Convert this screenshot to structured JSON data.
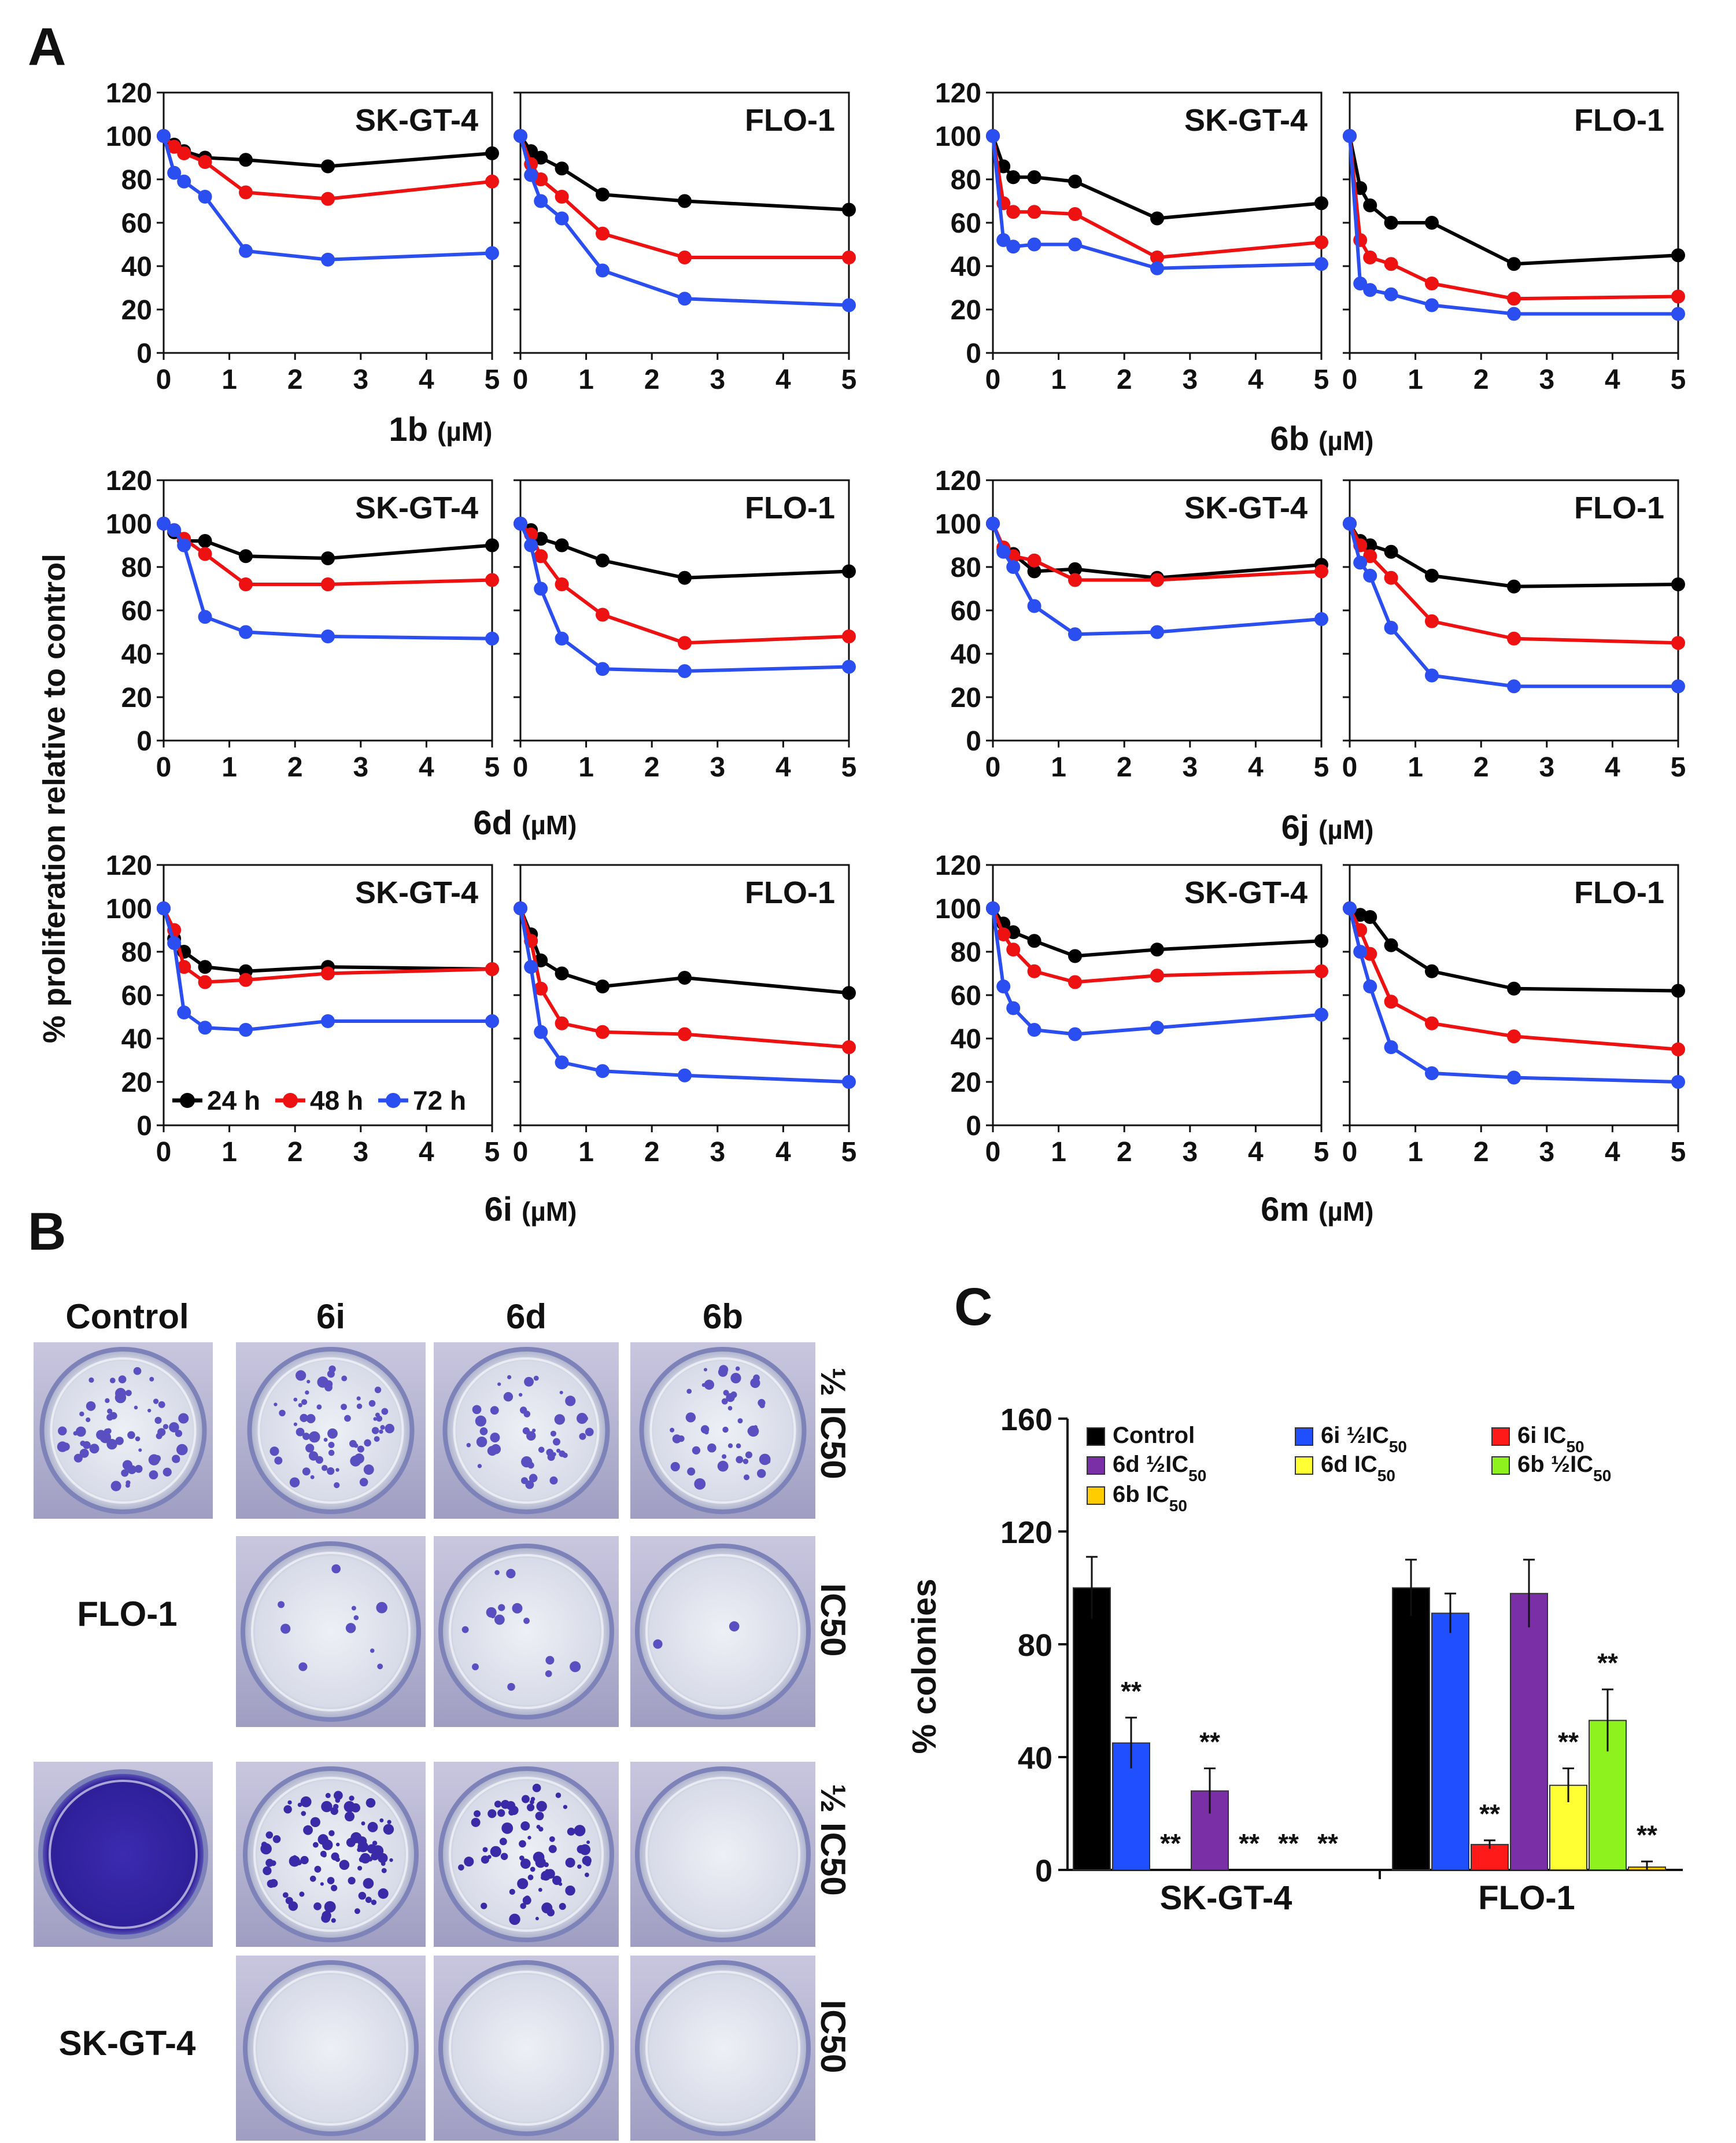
{
  "panels": {
    "a": "A",
    "b": "B",
    "c": "C"
  },
  "colors": {
    "24h": "#000000",
    "48h": "#ee1111",
    "72h": "#2a4ef0",
    "control": "#000000",
    "6i_half": "#1f4fff",
    "6i_ic50": "#ff1a1a",
    "6d_half": "#7a2fa6",
    "6d_ic50": "#ffff33",
    "6b_half": "#8df21e",
    "6b_ic50": "#ffcc00"
  },
  "panel_a": {
    "y_axis_label": "% proliferation relative to control",
    "unit": "(µM)",
    "legend": [
      "24 h",
      "48 h",
      "72 h"
    ],
    "cell_lines": [
      "SK-GT-4",
      "FLO-1"
    ]
  },
  "chart_data": [
    {
      "type": "line",
      "compound": "1b",
      "cell_line": "SK-GT-4",
      "xlabel": "(µM)",
      "ylabel": "% proliferation relative to control",
      "x": [
        0,
        0.16,
        0.31,
        0.63,
        1.25,
        2.5,
        5
      ],
      "xlim": [
        0,
        5
      ],
      "ylim": [
        0,
        120
      ],
      "series": [
        {
          "name": "24 h",
          "values": [
            100,
            96,
            93,
            90,
            89,
            86,
            92
          ]
        },
        {
          "name": "48 h",
          "values": [
            100,
            95,
            92,
            88,
            74,
            71,
            79
          ]
        },
        {
          "name": "72 h",
          "values": [
            100,
            83,
            79,
            72,
            47,
            43,
            46
          ]
        }
      ]
    },
    {
      "type": "line",
      "compound": "1b",
      "cell_line": "FLO-1",
      "xlabel": "(µM)",
      "ylabel": "% proliferation relative to control",
      "x": [
        0,
        0.16,
        0.31,
        0.63,
        1.25,
        2.5,
        5
      ],
      "xlim": [
        0,
        5
      ],
      "ylim": [
        0,
        120
      ],
      "series": [
        {
          "name": "24 h",
          "values": [
            100,
            93,
            90,
            85,
            73,
            70,
            66
          ]
        },
        {
          "name": "48 h",
          "values": [
            100,
            87,
            80,
            72,
            55,
            44,
            44
          ]
        },
        {
          "name": "72 h",
          "values": [
            100,
            82,
            70,
            62,
            38,
            25,
            22
          ]
        }
      ]
    },
    {
      "type": "line",
      "compound": "6b",
      "cell_line": "SK-GT-4",
      "xlabel": "(µM)",
      "ylabel": "% proliferation relative to control",
      "x": [
        0,
        0.16,
        0.31,
        0.63,
        1.25,
        2.5,
        5
      ],
      "xlim": [
        0,
        5
      ],
      "ylim": [
        0,
        120
      ],
      "series": [
        {
          "name": "24 h",
          "values": [
            100,
            86,
            81,
            81,
            79,
            62,
            69
          ]
        },
        {
          "name": "48 h",
          "values": [
            100,
            69,
            65,
            65,
            64,
            44,
            51
          ]
        },
        {
          "name": "72 h",
          "values": [
            100,
            52,
            49,
            50,
            50,
            39,
            41
          ]
        }
      ]
    },
    {
      "type": "line",
      "compound": "6b",
      "cell_line": "FLO-1",
      "xlabel": "(µM)",
      "ylabel": "% proliferation relative to control",
      "x": [
        0,
        0.16,
        0.31,
        0.63,
        1.25,
        2.5,
        5
      ],
      "xlim": [
        0,
        5
      ],
      "ylim": [
        0,
        120
      ],
      "series": [
        {
          "name": "24 h",
          "values": [
            100,
            76,
            68,
            60,
            60,
            41,
            45
          ]
        },
        {
          "name": "48 h",
          "values": [
            100,
            52,
            44,
            41,
            32,
            25,
            26
          ]
        },
        {
          "name": "72 h",
          "values": [
            100,
            32,
            29,
            27,
            22,
            18,
            18
          ]
        }
      ]
    },
    {
      "type": "line",
      "compound": "6d",
      "cell_line": "SK-GT-4",
      "xlabel": "(µM)",
      "ylabel": "% proliferation relative to control",
      "x": [
        0,
        0.16,
        0.31,
        0.63,
        1.25,
        2.5,
        5
      ],
      "xlim": [
        0,
        5
      ],
      "ylim": [
        0,
        120
      ],
      "series": [
        {
          "name": "24 h",
          "values": [
            100,
            96,
            92,
            92,
            85,
            84,
            90
          ]
        },
        {
          "name": "48 h",
          "values": [
            100,
            97,
            93,
            86,
            72,
            72,
            74
          ]
        },
        {
          "name": "72 h",
          "values": [
            100,
            97,
            90,
            57,
            50,
            48,
            47
          ]
        }
      ]
    },
    {
      "type": "line",
      "compound": "6d",
      "cell_line": "FLO-1",
      "xlabel": "(µM)",
      "ylabel": "% proliferation relative to control",
      "x": [
        0,
        0.16,
        0.31,
        0.63,
        1.25,
        2.5,
        5
      ],
      "xlim": [
        0,
        5
      ],
      "ylim": [
        0,
        120
      ],
      "series": [
        {
          "name": "24 h",
          "values": [
            100,
            97,
            93,
            90,
            83,
            75,
            78
          ]
        },
        {
          "name": "48 h",
          "values": [
            100,
            95,
            85,
            72,
            58,
            45,
            48
          ]
        },
        {
          "name": "72 h",
          "values": [
            100,
            90,
            70,
            47,
            33,
            32,
            34
          ]
        }
      ]
    },
    {
      "type": "line",
      "compound": "6j",
      "cell_line": "SK-GT-4",
      "xlabel": "(µM)",
      "ylabel": "% proliferation relative to control",
      "x": [
        0,
        0.16,
        0.31,
        0.63,
        1.25,
        2.5,
        5
      ],
      "xlim": [
        0,
        5
      ],
      "ylim": [
        0,
        120
      ],
      "series": [
        {
          "name": "24 h",
          "values": [
            100,
            88,
            86,
            78,
            79,
            75,
            81
          ]
        },
        {
          "name": "48 h",
          "values": [
            100,
            89,
            85,
            83,
            74,
            74,
            78
          ]
        },
        {
          "name": "72 h",
          "values": [
            100,
            87,
            80,
            62,
            49,
            50,
            56
          ]
        }
      ]
    },
    {
      "type": "line",
      "compound": "6j",
      "cell_line": "FLO-1",
      "xlabel": "(µM)",
      "ylabel": "% proliferation relative to control",
      "x": [
        0,
        0.16,
        0.31,
        0.63,
        1.25,
        2.5,
        5
      ],
      "xlim": [
        0,
        5
      ],
      "ylim": [
        0,
        120
      ],
      "series": [
        {
          "name": "24 h",
          "values": [
            100,
            92,
            90,
            87,
            76,
            71,
            72
          ]
        },
        {
          "name": "48 h",
          "values": [
            100,
            90,
            85,
            75,
            55,
            47,
            45
          ]
        },
        {
          "name": "72 h",
          "values": [
            100,
            82,
            76,
            52,
            30,
            25,
            25
          ]
        }
      ]
    },
    {
      "type": "line",
      "compound": "6i",
      "cell_line": "SK-GT-4",
      "xlabel": "(µM)",
      "ylabel": "% proliferation relative to control",
      "x": [
        0,
        0.16,
        0.31,
        0.63,
        1.25,
        2.5,
        5
      ],
      "xlim": [
        0,
        5
      ],
      "ylim": [
        0,
        120
      ],
      "series": [
        {
          "name": "24 h",
          "values": [
            100,
            86,
            80,
            73,
            71,
            73,
            72
          ]
        },
        {
          "name": "48 h",
          "values": [
            100,
            90,
            73,
            66,
            67,
            70,
            72
          ]
        },
        {
          "name": "72 h",
          "values": [
            100,
            84,
            52,
            45,
            44,
            48,
            48
          ]
        }
      ]
    },
    {
      "type": "line",
      "compound": "6i",
      "cell_line": "FLO-1",
      "xlabel": "(µM)",
      "ylabel": "% proliferation relative to control",
      "x": [
        0,
        0.16,
        0.31,
        0.63,
        1.25,
        2.5,
        5
      ],
      "xlim": [
        0,
        5
      ],
      "ylim": [
        0,
        120
      ],
      "series": [
        {
          "name": "24 h",
          "values": [
            100,
            88,
            76,
            70,
            64,
            68,
            61
          ]
        },
        {
          "name": "48 h",
          "values": [
            100,
            85,
            63,
            47,
            43,
            42,
            36
          ]
        },
        {
          "name": "72 h",
          "values": [
            100,
            73,
            43,
            29,
            25,
            23,
            20
          ]
        }
      ]
    },
    {
      "type": "line",
      "compound": "6m",
      "cell_line": "SK-GT-4",
      "xlabel": "(µM)",
      "ylabel": "% proliferation relative to control",
      "x": [
        0,
        0.16,
        0.31,
        0.63,
        1.25,
        2.5,
        5
      ],
      "xlim": [
        0,
        5
      ],
      "ylim": [
        0,
        120
      ],
      "series": [
        {
          "name": "24 h",
          "values": [
            100,
            93,
            89,
            85,
            78,
            81,
            85
          ]
        },
        {
          "name": "48 h",
          "values": [
            100,
            88,
            81,
            71,
            66,
            69,
            71
          ]
        },
        {
          "name": "72 h",
          "values": [
            100,
            64,
            54,
            44,
            42,
            45,
            51
          ]
        }
      ]
    },
    {
      "type": "line",
      "compound": "6m",
      "cell_line": "FLO-1",
      "xlabel": "(µM)",
      "ylabel": "% proliferation relative to control",
      "x": [
        0,
        0.16,
        0.31,
        0.63,
        1.25,
        2.5,
        5
      ],
      "xlim": [
        0,
        5
      ],
      "ylim": [
        0,
        120
      ],
      "series": [
        {
          "name": "24 h",
          "values": [
            100,
            97,
            96,
            83,
            71,
            63,
            62
          ]
        },
        {
          "name": "48 h",
          "values": [
            100,
            90,
            79,
            57,
            47,
            41,
            35
          ]
        },
        {
          "name": "72 h",
          "values": [
            100,
            80,
            64,
            36,
            24,
            22,
            20
          ]
        }
      ]
    },
    {
      "type": "bar",
      "title": "",
      "ylabel": "% colonies",
      "ylim": [
        0,
        160
      ],
      "yticks": [
        0,
        40,
        80,
        120,
        160
      ],
      "categories": [
        "SK-GT-4",
        "FLO-1"
      ],
      "series": [
        {
          "name": "Control",
          "values": [
            100,
            100
          ],
          "errors": [
            11,
            10
          ],
          "sig": [
            "",
            ""
          ]
        },
        {
          "name": "6i ½IC50",
          "values": [
            45,
            91
          ],
          "errors": [
            9,
            7
          ],
          "sig": [
            "**",
            ""
          ]
        },
        {
          "name": "6i IC50",
          "values": [
            0,
            9
          ],
          "errors": [
            0,
            1.5
          ],
          "sig": [
            "**",
            "**"
          ]
        },
        {
          "name": "6d ½IC50",
          "values": [
            28,
            98
          ],
          "errors": [
            8,
            12
          ],
          "sig": [
            "**",
            ""
          ]
        },
        {
          "name": "6d IC50",
          "values": [
            0,
            30
          ],
          "errors": [
            0,
            6
          ],
          "sig": [
            "**",
            "**"
          ]
        },
        {
          "name": "6b ½IC50",
          "values": [
            0,
            53
          ],
          "errors": [
            0,
            11
          ],
          "sig": [
            "**",
            "**"
          ]
        },
        {
          "name": "6b IC50",
          "values": [
            0,
            1
          ],
          "errors": [
            0,
            2
          ],
          "sig": [
            "**",
            "**"
          ]
        }
      ]
    }
  ],
  "panel_b": {
    "columns": [
      "Control",
      "6i",
      "6d",
      "6b"
    ],
    "rows": [
      "FLO-1",
      "SK-GT-4"
    ],
    "dose_half": "½ IC50",
    "dose_full": "IC50"
  },
  "panel_c": {
    "ylabel": "% colonies",
    "legend": [
      {
        "pre": "Control",
        "sub": ""
      },
      {
        "pre": "6i ½IC",
        "sub": "50"
      },
      {
        "pre": "6i IC",
        "sub": "50"
      },
      {
        "pre": "6d ½IC",
        "sub": "50"
      },
      {
        "pre": "6d IC",
        "sub": "50"
      },
      {
        "pre": "6b ½IC",
        "sub": "50"
      },
      {
        "pre": "6b IC",
        "sub": "50"
      }
    ]
  }
}
